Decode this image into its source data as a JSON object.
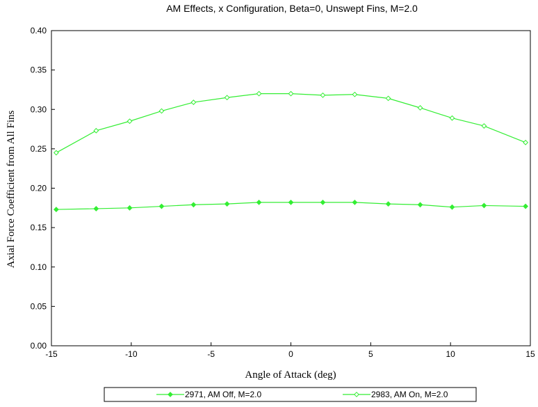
{
  "chart_data": {
    "type": "line",
    "title": "AM Effects, x Configuration, Beta=0, Unswept Fins, M=2.0",
    "xlabel": "Angle of Attack (deg)",
    "ylabel": "Axial Force Coefficient from All Fins",
    "xlim": [
      -15,
      15
    ],
    "ylim": [
      0,
      0.4
    ],
    "xticks": [
      "-15",
      "-10",
      "-5",
      "0",
      "5",
      "10",
      "15"
    ],
    "yticks": [
      "0.00",
      "0.05",
      "0.10",
      "0.15",
      "0.20",
      "0.25",
      "0.30",
      "0.35",
      "0.40"
    ],
    "grid": false,
    "legend_position": "bottom",
    "series": [
      {
        "name": "2971, AM Off, M=2.0",
        "color": "#33ee33",
        "marker": "filled-diamond",
        "x": [
          -14.7,
          -12.2,
          -10.1,
          -8.1,
          -6.1,
          -4.0,
          -2.0,
          0.0,
          2.0,
          4.0,
          6.1,
          8.1,
          10.1,
          12.1,
          14.7
        ],
        "y": [
          0.173,
          0.174,
          0.175,
          0.177,
          0.179,
          0.18,
          0.182,
          0.182,
          0.182,
          0.182,
          0.18,
          0.179,
          0.176,
          0.178,
          0.177
        ]
      },
      {
        "name": "2983, AM On, M=2.0",
        "color": "#33ee33",
        "marker": "open-diamond",
        "x": [
          -14.7,
          -12.2,
          -10.1,
          -8.1,
          -6.1,
          -4.0,
          -2.0,
          0.0,
          2.0,
          4.0,
          6.1,
          8.1,
          10.1,
          12.1,
          14.7
        ],
        "y": [
          0.245,
          0.273,
          0.285,
          0.298,
          0.309,
          0.315,
          0.32,
          0.32,
          0.318,
          0.319,
          0.314,
          0.302,
          0.289,
          0.279,
          0.258
        ]
      }
    ]
  }
}
